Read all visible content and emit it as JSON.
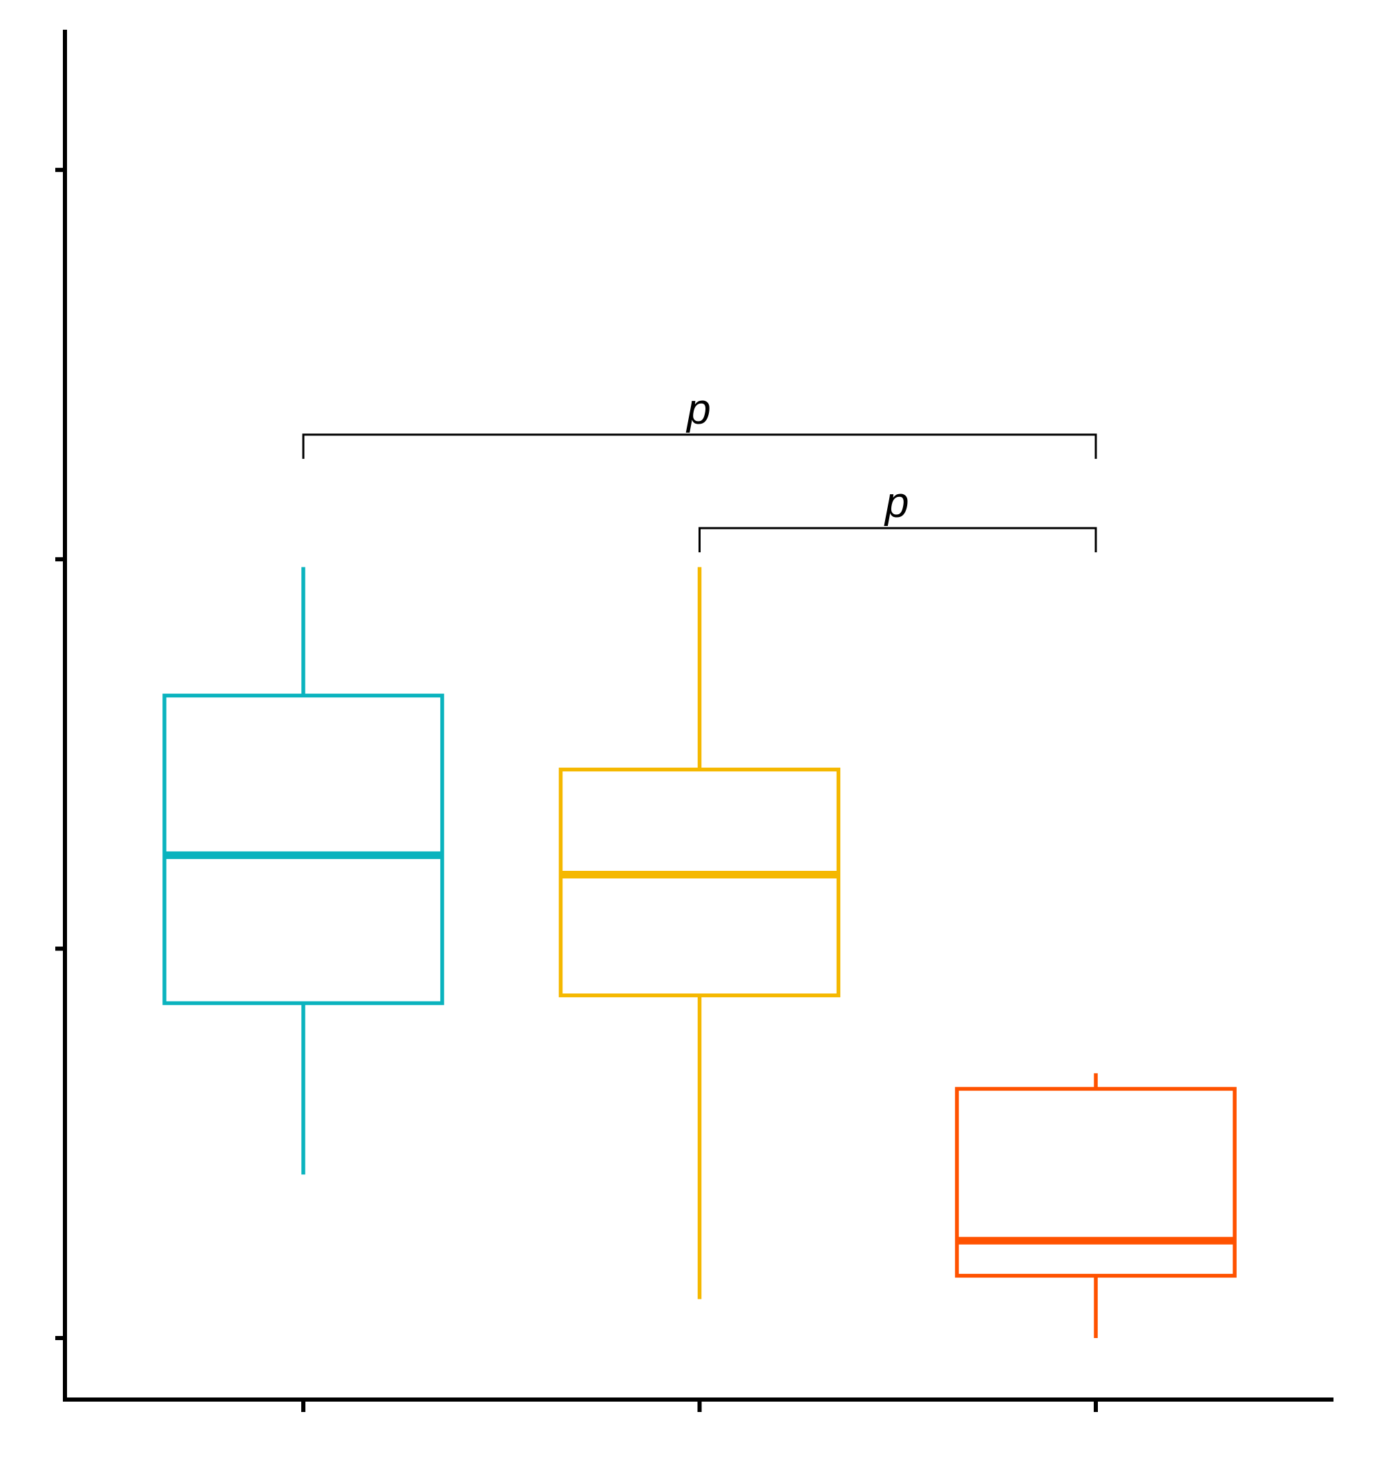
{
  "chart_data": {
    "type": "box",
    "categories": [
      null,
      null,
      null
    ],
    "boxes": [
      {
        "color": "#0ab3be",
        "whisker_low": 0.42,
        "q1": 0.86,
        "median": 1.24,
        "q3": 1.65,
        "whisker_high": 1.98
      },
      {
        "color": "#f5b800",
        "whisker_low": 0.1,
        "q1": 0.88,
        "median": 1.19,
        "q3": 1.46,
        "whisker_high": 1.98
      },
      {
        "color": "#ff5200",
        "whisker_low": 0,
        "q1": 0.16,
        "median": 0.25,
        "q3": 0.64,
        "whisker_high": 0.68
      }
    ],
    "ylim": [
      -0.158,
      3.36
    ],
    "yticks": [
      0,
      1,
      2,
      3
    ],
    "grid": false,
    "annotations": [
      {
        "text": "p",
        "from": 0,
        "to": 2,
        "y": 2.32
      },
      {
        "text": "p",
        "from": 1,
        "to": 2,
        "y": 2.08
      }
    ]
  }
}
